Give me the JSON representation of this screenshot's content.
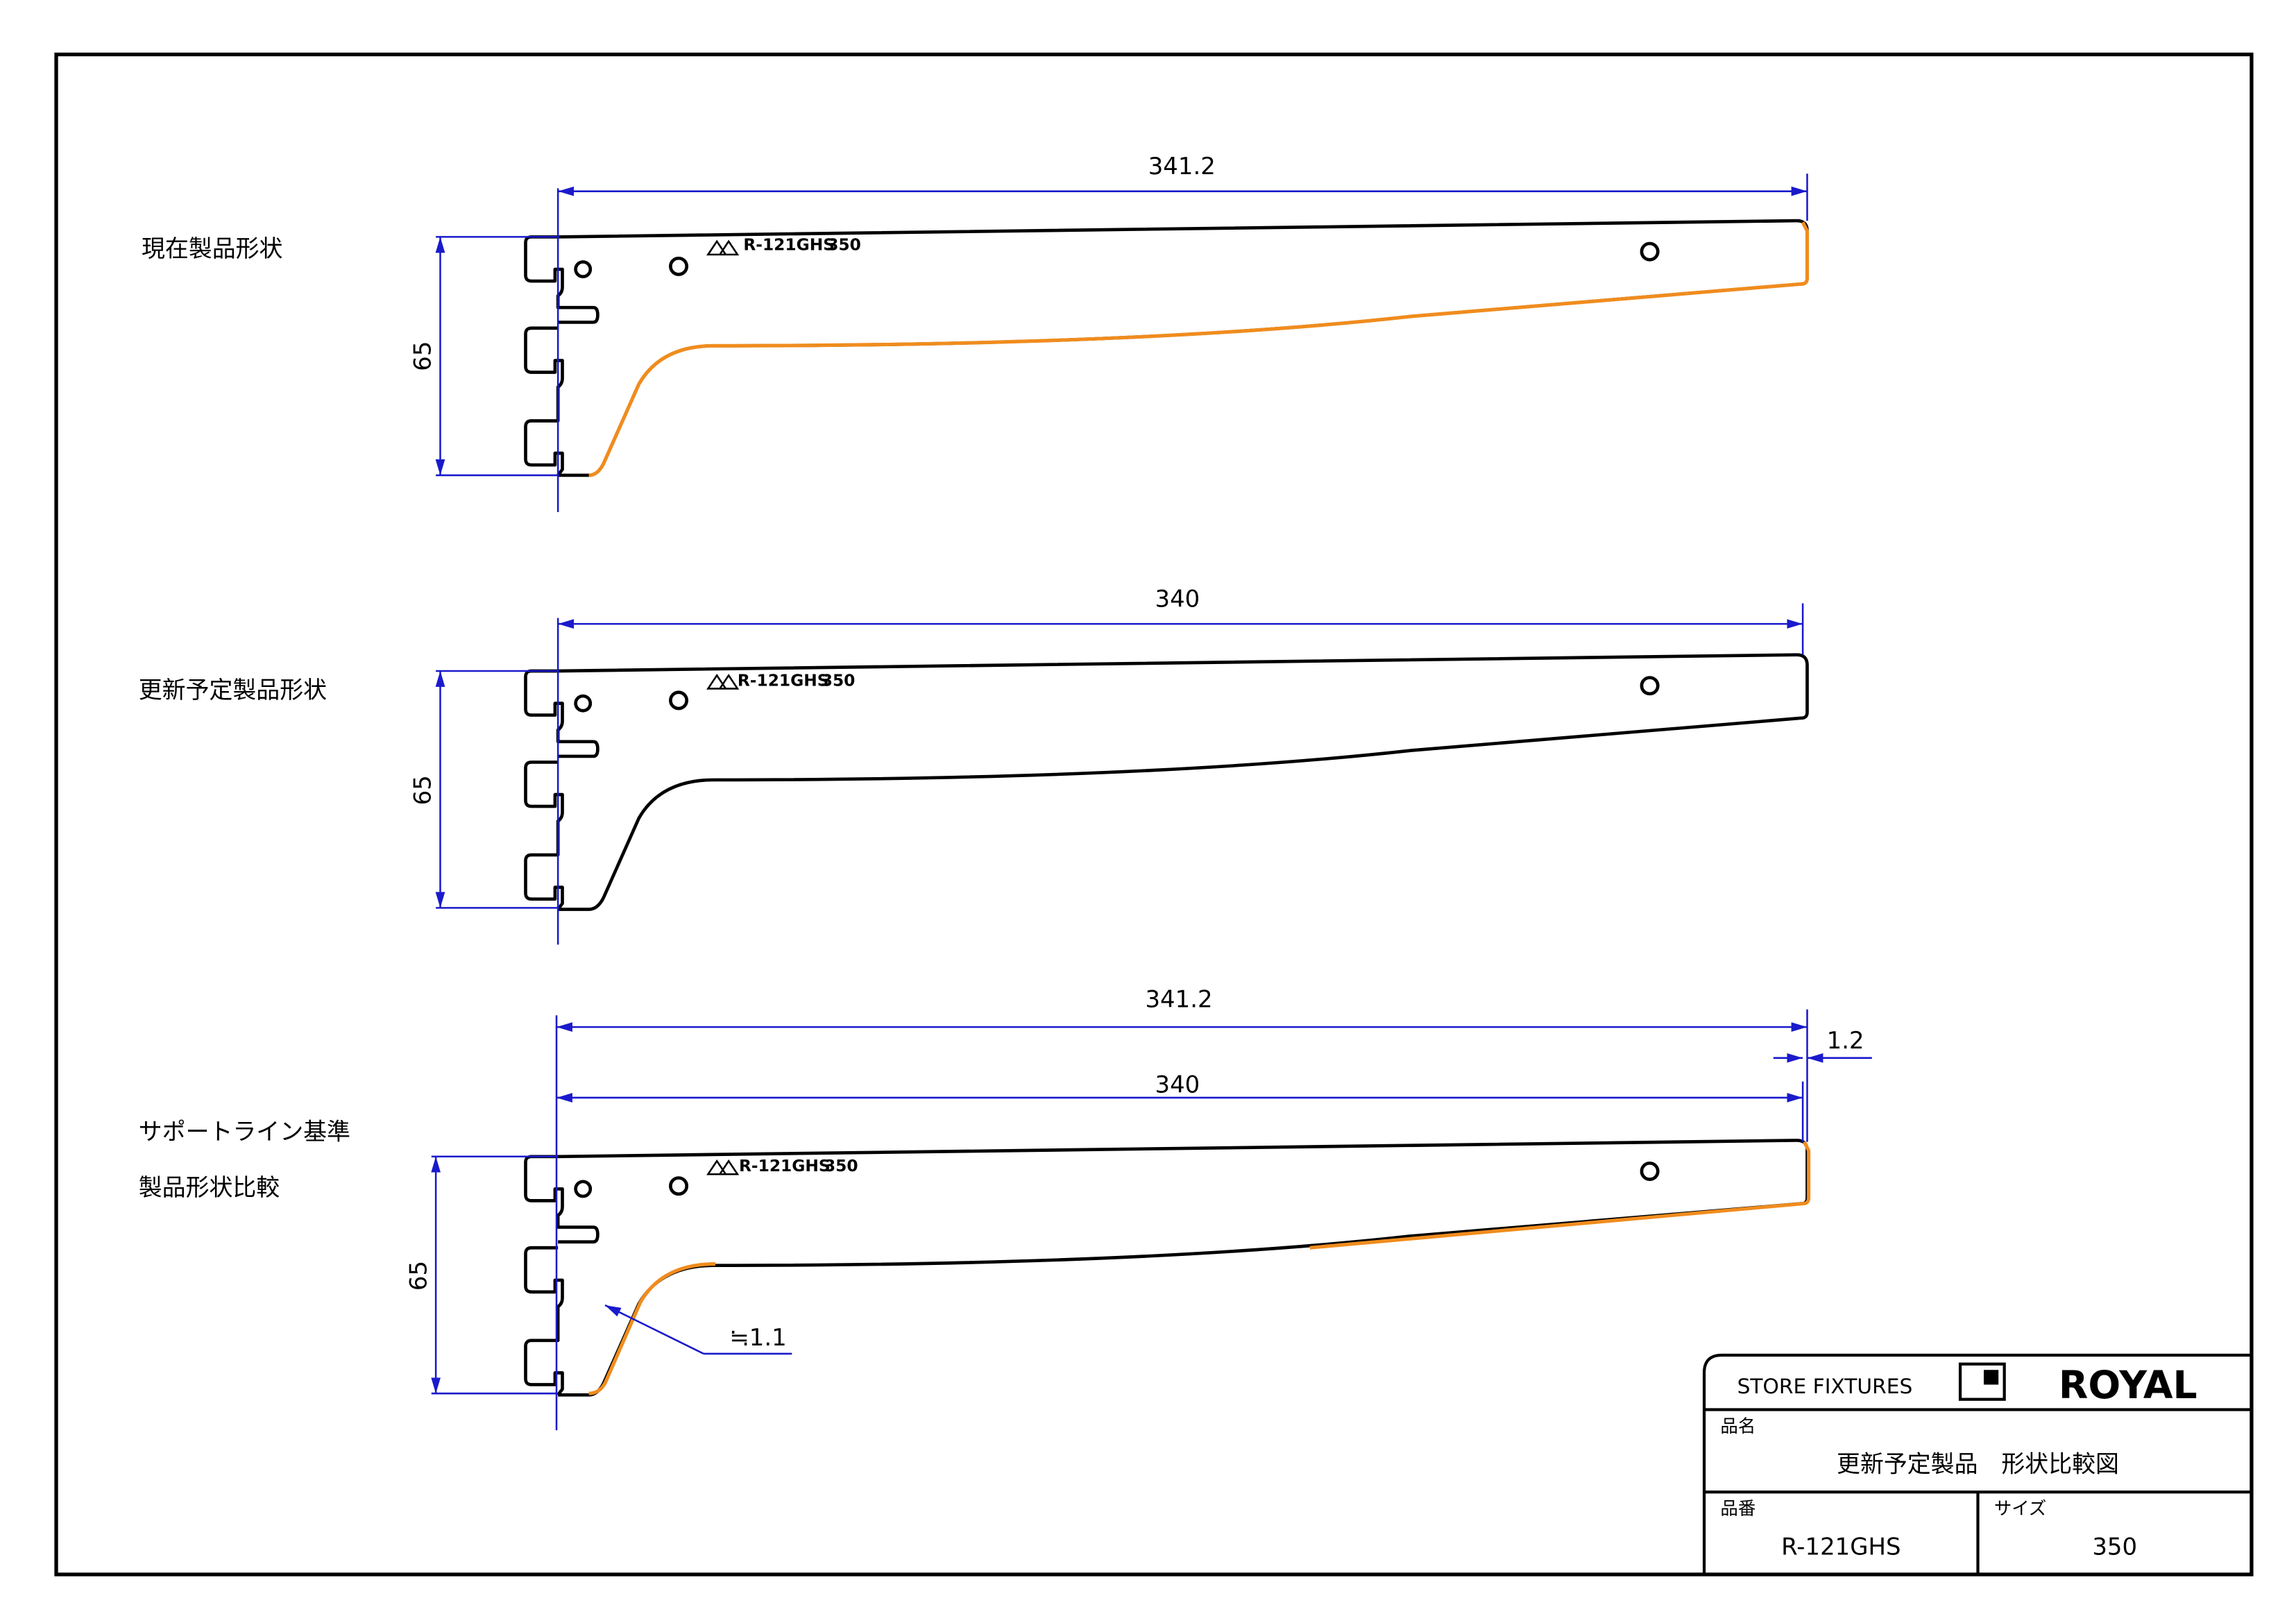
{
  "views": [
    {
      "label_lines": [
        "現在製品形状"
      ],
      "length": "341.2",
      "height": "65"
    },
    {
      "label_lines": [
        "更新予定製品形状"
      ],
      "length": "340",
      "height": "65"
    },
    {
      "label_lines": [
        "サポートライン基準",
        "製品形状比較"
      ],
      "length_total": "341.2",
      "length": "340",
      "offset": "1.2",
      "height": "65",
      "thickness": "≒1.1"
    }
  ],
  "stamp": {
    "model": "R-121GHS",
    "size": "350"
  },
  "title_block": {
    "company_tag": "STORE FIXTURES",
    "brand": "ROYAL",
    "product_name_label": "品名",
    "product_name": "更新予定製品　形状比較図",
    "part_number_label": "品番",
    "part_number": "R-121GHS",
    "size_label": "サイズ",
    "size": "350"
  }
}
